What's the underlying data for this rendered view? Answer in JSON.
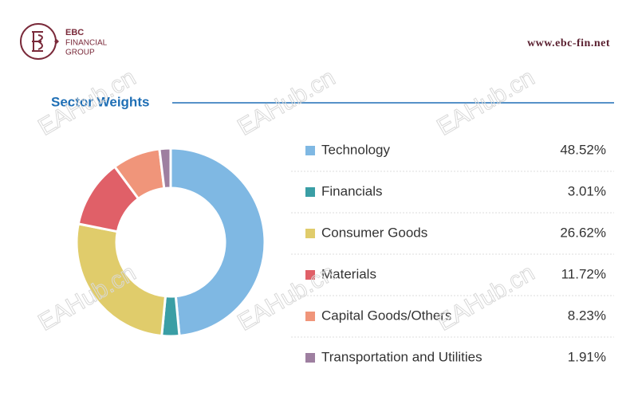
{
  "header": {
    "logo_lines": [
      "EBC",
      "FINANCIAL",
      "GROUP"
    ],
    "url": "www.ebc-fin.net"
  },
  "watermark": "EAHub.cn",
  "chart_data": {
    "type": "donut",
    "title": "Sector Weights",
    "categories": [
      "Technology",
      "Financials",
      "Consumer Goods",
      "Materials",
      "Capital Goods/Others",
      "Transportation and Utilities"
    ],
    "values": [
      48.52,
      3.01,
      26.62,
      11.72,
      8.23,
      1.91
    ],
    "value_labels": [
      "48.52%",
      "3.01%",
      "26.62%",
      "11.72%",
      "8.23%",
      "1.91%"
    ],
    "colors": [
      "#7fb8e3",
      "#3a9ea5",
      "#e0cc6b",
      "#e06068",
      "#f0957a",
      "#9e7fa0"
    ]
  }
}
